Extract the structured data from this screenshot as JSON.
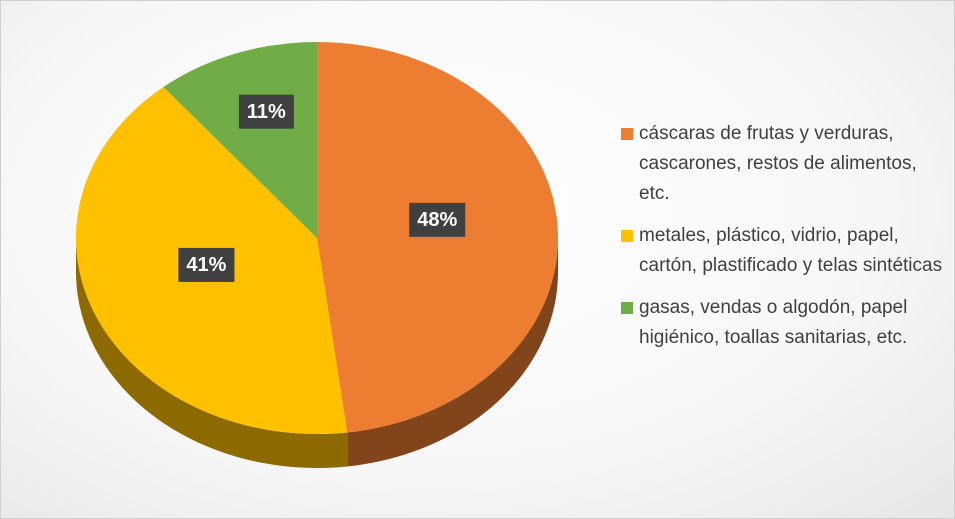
{
  "chart_data": {
    "type": "pie",
    "categories": [
      "cáscaras de frutas y verduras, cascarones, restos de alimentos, etc.",
      "metales, plástico, vidrio, papel, cartón, plastificado y telas sintéticas",
      "gasas, vendas o algodón, papel higiénico, toallas sanitarias, etc."
    ],
    "values": [
      48,
      41,
      11
    ],
    "value_labels": [
      "48%",
      "41%",
      "11%"
    ],
    "colors": [
      "#ed7d31",
      "#ffc000",
      "#70ad47"
    ],
    "legend": "right"
  }
}
